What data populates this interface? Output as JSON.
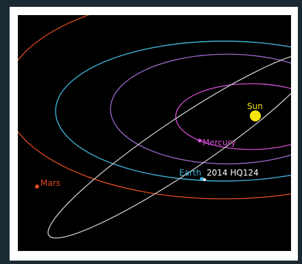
{
  "colors": {
    "mars": "#e04a1f",
    "earth": "#3fb0d8",
    "mercury": "#d64fd6",
    "venus": "#a26ad0",
    "asteroid": "#cfcfcf",
    "sun": "#f5e50e",
    "background": "#000000"
  },
  "labels": {
    "sun": "Sun",
    "mercury": "Mercury",
    "earth": "Earth",
    "asteroid": "2014 HQ124",
    "mars": "Mars"
  }
}
